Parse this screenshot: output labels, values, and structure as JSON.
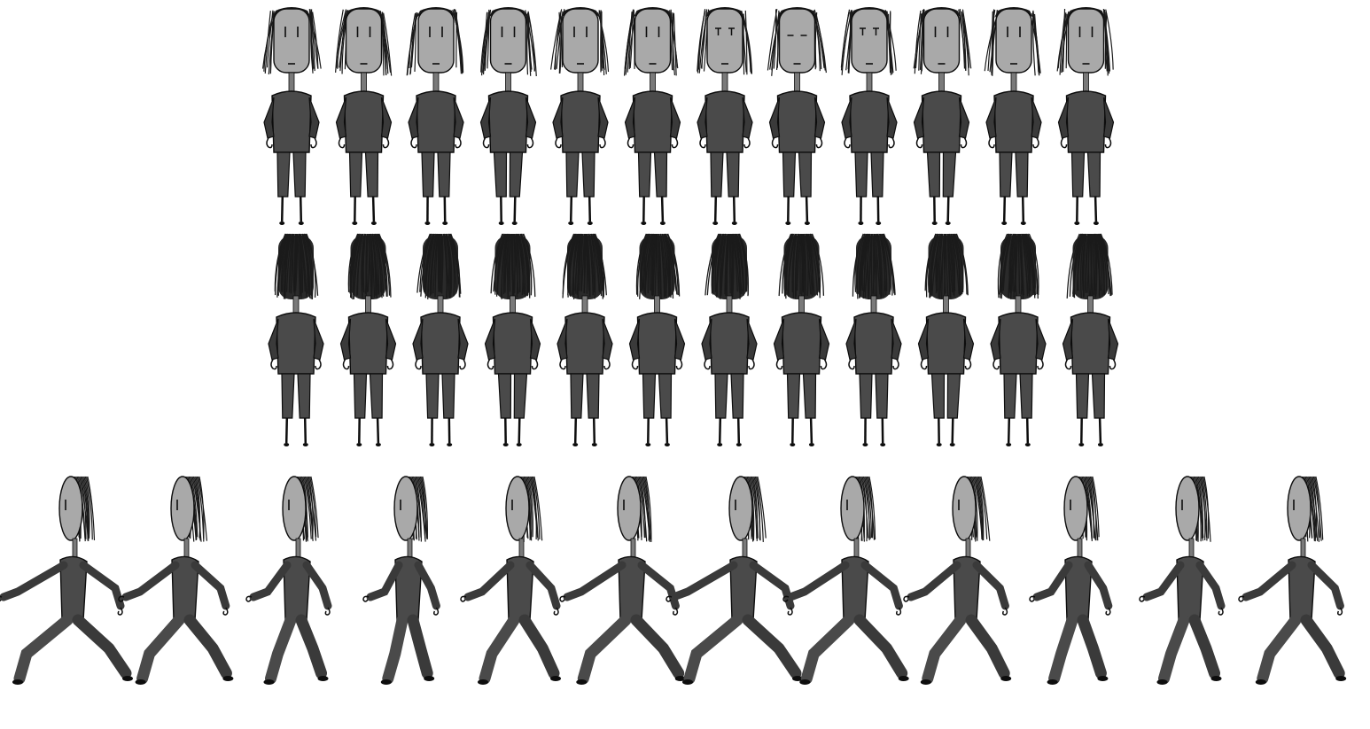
{
  "sprite_sheet": {
    "background_color": "#ffffff",
    "palette": {
      "face": "#a9a9a9",
      "hair": "#1a1a1a",
      "clothing": "#4a4a4a",
      "clothing_shade": "#3a3a3a",
      "outline": "#0d0d0d",
      "neck": "#7a7a7a"
    },
    "rows": [
      {
        "id": "front-walk",
        "view": "front",
        "frame_count": 12,
        "frames": [
          {
            "eyes": "lines",
            "step": 0
          },
          {
            "eyes": "lines",
            "step": 1
          },
          {
            "eyes": "lines",
            "step": 2
          },
          {
            "eyes": "lines",
            "step": 3
          },
          {
            "eyes": "lines",
            "step": 0
          },
          {
            "eyes": "lines",
            "step": 1
          },
          {
            "eyes": "t-shape",
            "step": 0
          },
          {
            "eyes": "closed",
            "step": 1
          },
          {
            "eyes": "t-shape",
            "step": 2
          },
          {
            "eyes": "lines",
            "step": 3
          },
          {
            "eyes": "lines",
            "step": 0
          },
          {
            "eyes": "lines",
            "step": 1
          }
        ]
      },
      {
        "id": "back-walk",
        "view": "back",
        "frame_count": 12,
        "frames": [
          {
            "step": 0
          },
          {
            "step": 1
          },
          {
            "step": 2
          },
          {
            "step": 3
          },
          {
            "step": 0
          },
          {
            "step": 1
          },
          {
            "step": 0
          },
          {
            "step": 1
          },
          {
            "step": 2
          },
          {
            "step": 3
          },
          {
            "step": 0
          },
          {
            "step": 1
          }
        ]
      },
      {
        "id": "side-walk",
        "view": "side",
        "frame_count": 12,
        "frames": [
          {
            "stride": 1.0,
            "phase": 0
          },
          {
            "stride": 0.7,
            "phase": 1
          },
          {
            "stride": 0.25,
            "phase": 2
          },
          {
            "stride": 0.1,
            "phase": 3
          },
          {
            "stride": 0.5,
            "phase": 4
          },
          {
            "stride": 0.85,
            "phase": 5
          },
          {
            "stride": 1.0,
            "phase": 6
          },
          {
            "stride": 0.85,
            "phase": 7
          },
          {
            "stride": 0.6,
            "phase": 8
          },
          {
            "stride": 0.2,
            "phase": 9
          },
          {
            "stride": 0.25,
            "phase": 10
          },
          {
            "stride": 0.6,
            "phase": 11
          }
        ]
      }
    ]
  }
}
